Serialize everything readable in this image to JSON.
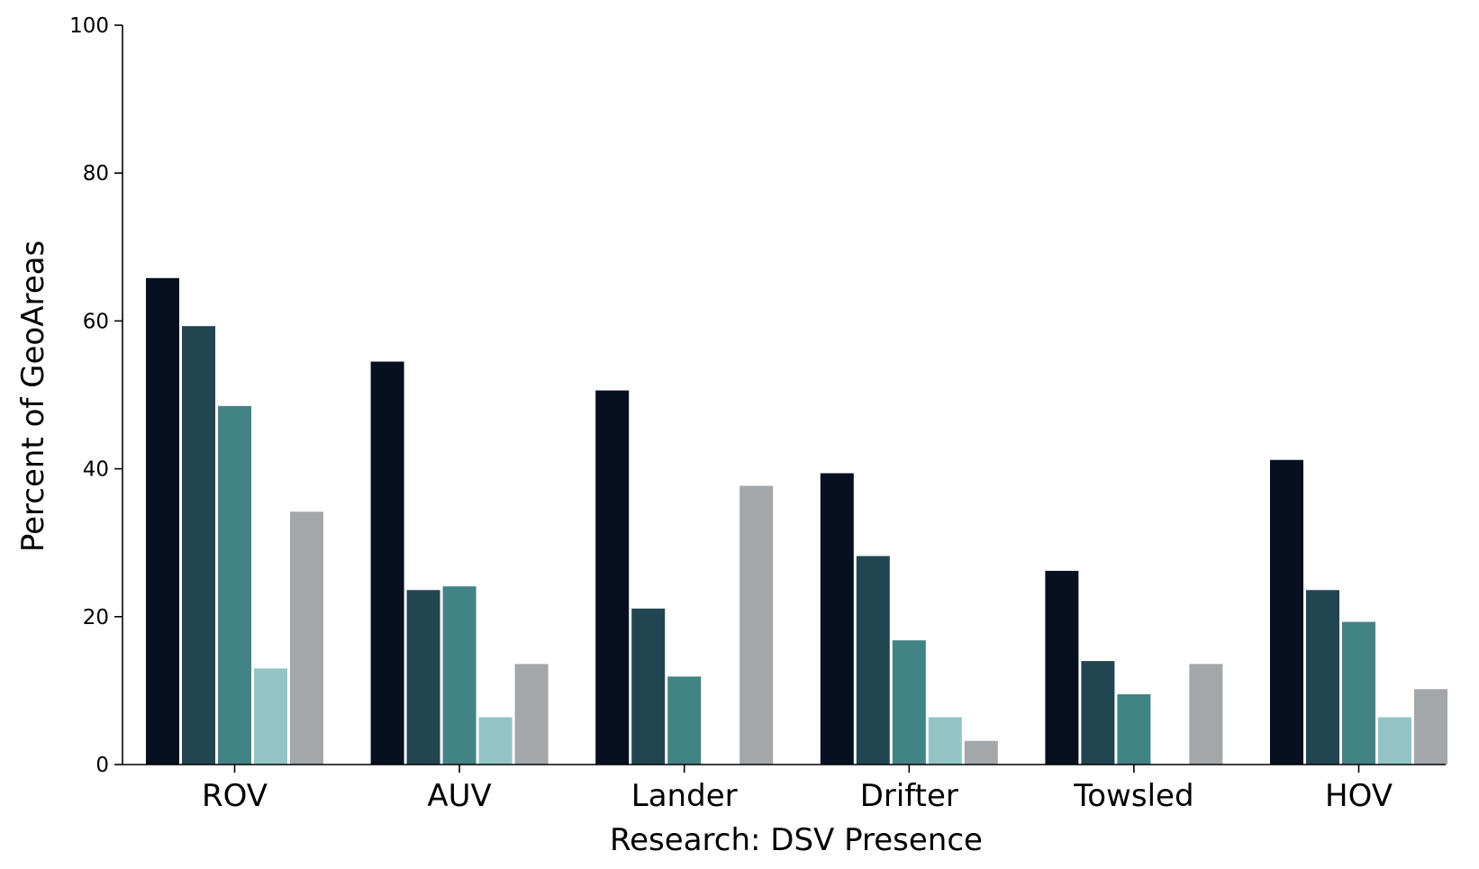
{
  "chart_data": {
    "type": "bar",
    "title": "",
    "xlabel": "Research: DSV Presence",
    "ylabel": "Percent of GeoAreas",
    "ylim": [
      0,
      100
    ],
    "yticks": [
      "0",
      "20",
      "40",
      "60",
      "80",
      "100"
    ],
    "grid": false,
    "legend": "none",
    "categories": [
      "ROV",
      "AUV",
      "Lander",
      "Drifter",
      "Towsled",
      "HOV"
    ],
    "series": [
      {
        "color": "#061020",
        "values": [
          65.8,
          54.5,
          50.6,
          39.4,
          26.2,
          41.2
        ]
      },
      {
        "color": "#214652",
        "values": [
          59.3,
          23.6,
          21.1,
          28.2,
          14.0,
          23.6
        ]
      },
      {
        "color": "#428386",
        "values": [
          48.5,
          24.1,
          11.9,
          16.8,
          9.5,
          19.3
        ]
      },
      {
        "color": "#94c4c5",
        "values": [
          13.0,
          6.4,
          0,
          6.4,
          0,
          6.4
        ]
      },
      {
        "color": "#a3a7aa",
        "values": [
          34.2,
          13.6,
          37.7,
          3.2,
          13.6,
          10.2
        ]
      }
    ]
  }
}
